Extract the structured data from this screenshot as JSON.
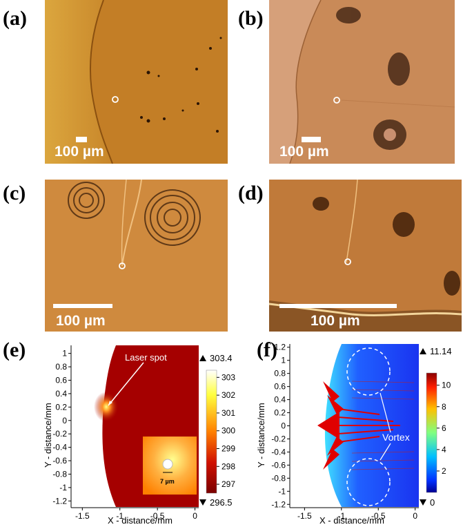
{
  "panels": {
    "a": {
      "label": "(a)",
      "scale": "100 µm"
    },
    "b": {
      "label": "(b)",
      "scale": "100 µm"
    },
    "c": {
      "label": "(c)",
      "scale": "100 µm"
    },
    "d": {
      "label": "(d)",
      "scale": "100 µm"
    },
    "e": {
      "label": "(e)"
    },
    "f": {
      "label": "(f)"
    }
  },
  "colors": {
    "a_bg": "#c98a2a",
    "b_bg": "#cf9060",
    "c_bg": "#cf8a3e",
    "d_bg": "#c07a3a",
    "heat_dark": "#a50000",
    "vel_blue": "#1f3fff",
    "arrow_red": "#e00000"
  },
  "chart_data": [
    {
      "type": "heatmap",
      "panel": "e",
      "xlabel": "X - distance/mm",
      "ylabel": "Y - distance/mm",
      "xticks": [
        "-1.5",
        "-1",
        "-0.5",
        "0"
      ],
      "yticks": [
        "1",
        "0.8",
        "0.6",
        "0.4",
        "0.2",
        "0",
        "-0.2",
        "-0.4",
        "-0.6",
        "-0.8",
        "-1",
        "-1.2"
      ],
      "xlim": [
        -1.65,
        0.05
      ],
      "ylim": [
        -1.3,
        1.12
      ],
      "colorbar": {
        "max": "303.4",
        "min": "296.5",
        "ticks": [
          "303",
          "302",
          "301",
          "300",
          "299",
          "298",
          "297"
        ]
      },
      "annotations": [
        "Laser spot",
        "7 µm"
      ]
    },
    {
      "type": "heatmap",
      "panel": "f",
      "xlabel": "X - distance/mm",
      "ylabel": "Y - distance/mm",
      "xticks": [
        "-1.5",
        "-1",
        "-0.5",
        "0"
      ],
      "yticks": [
        "1.2",
        "1",
        "0.8",
        "0.6",
        "0.4",
        "0.2",
        "0",
        "-0.2",
        "-0.4",
        "-0.6",
        "-0.8",
        "-1",
        "-1.2"
      ],
      "xlim": [
        -1.7,
        0.05
      ],
      "ylim": [
        -1.25,
        1.25
      ],
      "colorbar": {
        "max": "11.14",
        "min": "0",
        "ticks": [
          "10",
          "8",
          "6",
          "4",
          "2"
        ]
      },
      "annotations": [
        "Vortex"
      ]
    }
  ]
}
